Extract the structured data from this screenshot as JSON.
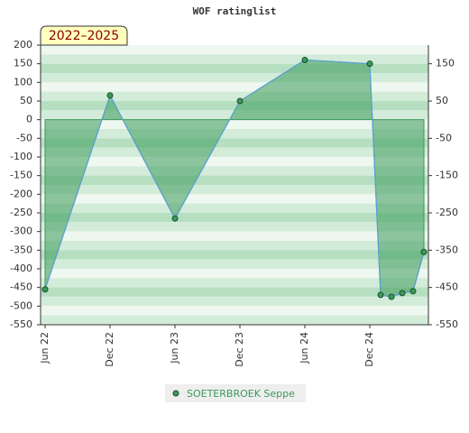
{
  "chart_data": {
    "type": "area",
    "title": "WOF ratinglist",
    "annotation": "2022–2025",
    "x": [
      "Jun 22",
      "Dec 22",
      "Jun 23",
      "Dec 23",
      "Jun 24",
      "Dec 24",
      "Jan 25",
      "Feb 25",
      "Mar 25",
      "Apr 25",
      "May 25"
    ],
    "xticks": [
      "Jun 22",
      "Dec 22",
      "Jun 23",
      "Dec 23",
      "Jun 24",
      "Dec 24"
    ],
    "series": [
      {
        "name": "SOETERBROEK Seppe",
        "color": "#3a9a5a",
        "values": [
          -455,
          65,
          -265,
          50,
          160,
          150,
          -470,
          -475,
          -465,
          -460,
          -355
        ]
      }
    ],
    "ylim": [
      -550,
      200
    ],
    "yticks": [
      200,
      150,
      100,
      50,
      0,
      -50,
      -100,
      -150,
      -200,
      -250,
      -300,
      -350,
      -400,
      -450,
      -500,
      -550
    ],
    "y2lim": [
      -550,
      200
    ],
    "y2ticks": [
      150,
      50,
      -50,
      -150,
      -250,
      -350,
      -450,
      -550
    ]
  }
}
